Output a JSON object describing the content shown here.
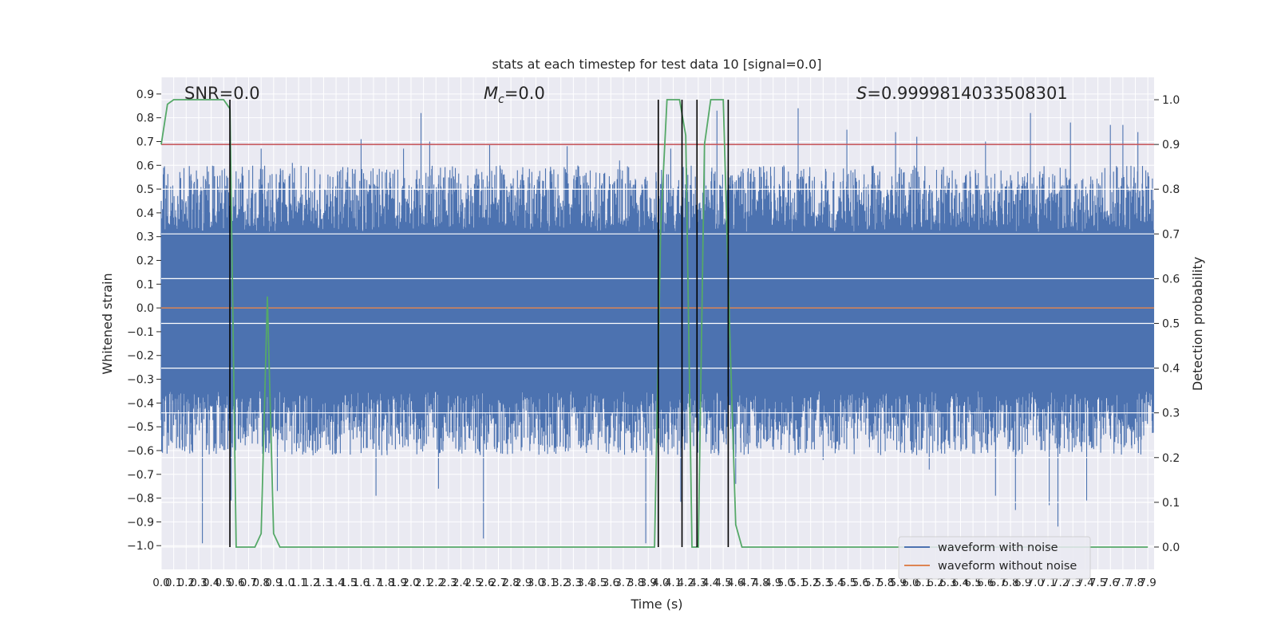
{
  "chart_data": {
    "type": "line",
    "title": "stats at each timestep for test data 10 [signal=0.0]",
    "xlabel": "Time (s)",
    "ylabel": "Whitened strain",
    "ylabel_right": "Detection probability",
    "xlim": [
      0.0,
      7.95
    ],
    "ylim": [
      -1.1,
      0.97
    ],
    "ylim_right": [
      -0.05,
      1.05
    ],
    "x_ticks": [
      "0.0",
      "0.1",
      "0.2",
      "0.3",
      "0.4",
      "0.5",
      "0.6",
      "0.7",
      "0.8",
      "0.9",
      "1.0",
      "1.1",
      "1.2",
      "1.3",
      "1.4",
      "1.5",
      "1.6",
      "1.7",
      "1.8",
      "1.9",
      "2.0",
      "2.1",
      "2.2",
      "2.3",
      "2.4",
      "2.5",
      "2.6",
      "2.7",
      "2.8",
      "2.9",
      "3.0",
      "3.1",
      "3.2",
      "3.3",
      "3.4",
      "3.5",
      "3.6",
      "3.7",
      "3.8",
      "3.9",
      "4.0",
      "4.1",
      "4.2",
      "4.3",
      "4.4",
      "4.5",
      "4.6",
      "4.7",
      "4.8",
      "4.9",
      "5.0",
      "5.1",
      "5.2",
      "5.3",
      "5.4",
      "5.5",
      "5.6",
      "5.7",
      "5.8",
      "5.9",
      "6.0",
      "6.1",
      "6.2",
      "6.3",
      "6.4",
      "6.5",
      "6.6",
      "6.7",
      "6.8",
      "6.9",
      "7.0",
      "7.1",
      "7.2",
      "7.3",
      "7.4",
      "7.5",
      "7.6",
      "7.7",
      "7.8",
      "7.9"
    ],
    "x_tick_labels": [
      "0.0",
      "0.1",
      "0.2",
      "0.3",
      "0.4",
      "0.5",
      "0.6",
      "0.7",
      "0.8",
      "0.9",
      "1.0",
      "1.1",
      "1.2",
      "1.3",
      "1.4",
      "1.5",
      "1.6",
      "1.7",
      "1.8",
      "1.9",
      "2.0",
      "2.1",
      "2.2",
      "2.3",
      "2.4",
      "2.5",
      "2.6",
      "2.7",
      "2.8",
      "2.9",
      "3.0",
      "3.1",
      "3.2",
      "3.3",
      "3.4",
      "3.5",
      "3.6",
      "3.7",
      "3.8",
      "3.9",
      "4.0",
      "4.1",
      "4.2",
      "4.3",
      "4.4",
      "4.5",
      "4.6",
      "4.7",
      "4.8",
      "4.9",
      "5.0",
      "5.1",
      "5.2",
      "5.3",
      "5.4",
      "5.5",
      "5.6",
      "5.7",
      "5.8",
      "5.9",
      "6.0",
      "6.1",
      "6.2",
      "6.3",
      "6.4",
      "6.5",
      "6.6",
      "6.7",
      "6.8",
      "6.9",
      "7.0",
      "7.1",
      "7.2",
      "7.3",
      "7.4",
      "7.5",
      "7.6",
      "7.7",
      "7.8",
      "7.9"
    ],
    "y_ticks_left": [
      "0.9",
      "0.8",
      "0.7",
      "0.6",
      "0.5",
      "0.4",
      "0.3",
      "0.2",
      "0.1",
      "0.0",
      "-0.1",
      "-0.2",
      "-0.3",
      "-0.4",
      "-0.5",
      "-0.6",
      "-0.7",
      "-0.8",
      "-0.9",
      "-1.0"
    ],
    "y_tick_labels_left": [
      "0.9",
      "0.8",
      "0.7",
      "0.6",
      "0.5",
      "0.4",
      "0.3",
      "0.2",
      "0.1",
      "0.0",
      "−0.1",
      "−0.2",
      "−0.3",
      "−0.4",
      "−0.5",
      "−0.6",
      "−0.7",
      "−0.8",
      "−0.9",
      "−1.0"
    ],
    "y_ticks_right": [
      "1.0",
      "0.9",
      "0.8",
      "0.7",
      "0.6",
      "0.5",
      "0.4",
      "0.3",
      "0.2",
      "0.1",
      "0.0"
    ],
    "annotations": {
      "snr": "SNR=0.0",
      "mc_symbol": "M",
      "mc_sub": "c",
      "mc_value": "=0.0",
      "s_symbol": "S",
      "s_value": "=0.9999814033508301"
    },
    "threshold": 0.9,
    "detection_probability": {
      "t": [
        0.0,
        0.05,
        0.1,
        0.15,
        0.2,
        0.25,
        0.3,
        0.35,
        0.4,
        0.45,
        0.5,
        0.55,
        0.6,
        0.65,
        0.7,
        0.75,
        0.8,
        0.85,
        0.9,
        0.95,
        1.0,
        1.05,
        1.1,
        1.15,
        1.2,
        3.9,
        3.95,
        4.0,
        4.05,
        4.1,
        4.15,
        4.2,
        4.25,
        4.3,
        4.35,
        4.4,
        4.45,
        4.5,
        4.55,
        4.6,
        4.65,
        4.7,
        7.9
      ],
      "p": [
        0.9,
        0.99,
        1.0,
        1.0,
        1.0,
        1.0,
        1.0,
        1.0,
        1.0,
        1.0,
        1.0,
        0.98,
        0.0,
        0.0,
        0.0,
        0.0,
        0.03,
        0.56,
        0.03,
        0.0,
        0.0,
        0.0,
        0.0,
        0.0,
        0.0,
        0.0,
        0.0,
        0.72,
        1.0,
        1.0,
        1.0,
        0.92,
        0.0,
        0.0,
        0.9,
        1.0,
        1.0,
        1.0,
        0.5,
        0.05,
        0.0,
        0.0,
        0.0
      ]
    },
    "detection_markers_t": [
      0.55,
      3.98,
      4.17,
      4.29,
      4.54
    ],
    "noise_band": {
      "core_low": -0.35,
      "core_high": 0.32,
      "typical_low": -0.62,
      "typical_high": 0.6
    },
    "noise_peaks": [
      {
        "t": 0.33,
        "v": -0.99
      },
      {
        "t": 0.56,
        "v": -0.81
      },
      {
        "t": 0.8,
        "v": 0.67
      },
      {
        "t": 0.93,
        "v": -0.77
      },
      {
        "t": 1.05,
        "v": 0.61
      },
      {
        "t": 1.6,
        "v": 0.71
      },
      {
        "t": 1.72,
        "v": -0.79
      },
      {
        "t": 1.94,
        "v": 0.67
      },
      {
        "t": 2.08,
        "v": 0.82
      },
      {
        "t": 2.15,
        "v": 0.7
      },
      {
        "t": 2.22,
        "v": -0.76
      },
      {
        "t": 2.58,
        "v": -0.97
      },
      {
        "t": 2.63,
        "v": 0.69
      },
      {
        "t": 3.25,
        "v": 0.68
      },
      {
        "t": 3.67,
        "v": 0.62
      },
      {
        "t": 3.88,
        "v": -0.99
      },
      {
        "t": 4.08,
        "v": 0.67
      },
      {
        "t": 4.16,
        "v": -0.82
      },
      {
        "t": 4.35,
        "v": 0.7
      },
      {
        "t": 4.45,
        "v": 0.83
      },
      {
        "t": 4.6,
        "v": -0.74
      },
      {
        "t": 5.1,
        "v": 0.84
      },
      {
        "t": 5.3,
        "v": -0.64
      },
      {
        "t": 5.49,
        "v": 0.75
      },
      {
        "t": 5.74,
        "v": -0.61
      },
      {
        "t": 5.88,
        "v": 0.74
      },
      {
        "t": 6.05,
        "v": 0.72
      },
      {
        "t": 6.15,
        "v": -0.68
      },
      {
        "t": 6.6,
        "v": 0.7
      },
      {
        "t": 6.68,
        "v": -0.79
      },
      {
        "t": 6.84,
        "v": -0.85
      },
      {
        "t": 6.96,
        "v": 0.82
      },
      {
        "t": 7.11,
        "v": -0.83
      },
      {
        "t": 7.18,
        "v": -0.92
      },
      {
        "t": 7.28,
        "v": 0.78
      },
      {
        "t": 7.41,
        "v": -0.81
      },
      {
        "t": 7.6,
        "v": 0.77
      },
      {
        "t": 7.7,
        "v": 0.77
      },
      {
        "t": 7.82,
        "v": 0.74
      }
    ],
    "noise_seed": 10,
    "legend": {
      "position": "lower-right",
      "entries": [
        "waveform with noise",
        "waveform without noise"
      ]
    },
    "colors": {
      "noise": "#4c72b0",
      "clean": "#dd8452",
      "probability": "#55a868",
      "threshold": "#c44e52",
      "marker": "#000000",
      "grid": "#ffffff",
      "axes_bg": "#eaeaf2"
    }
  }
}
